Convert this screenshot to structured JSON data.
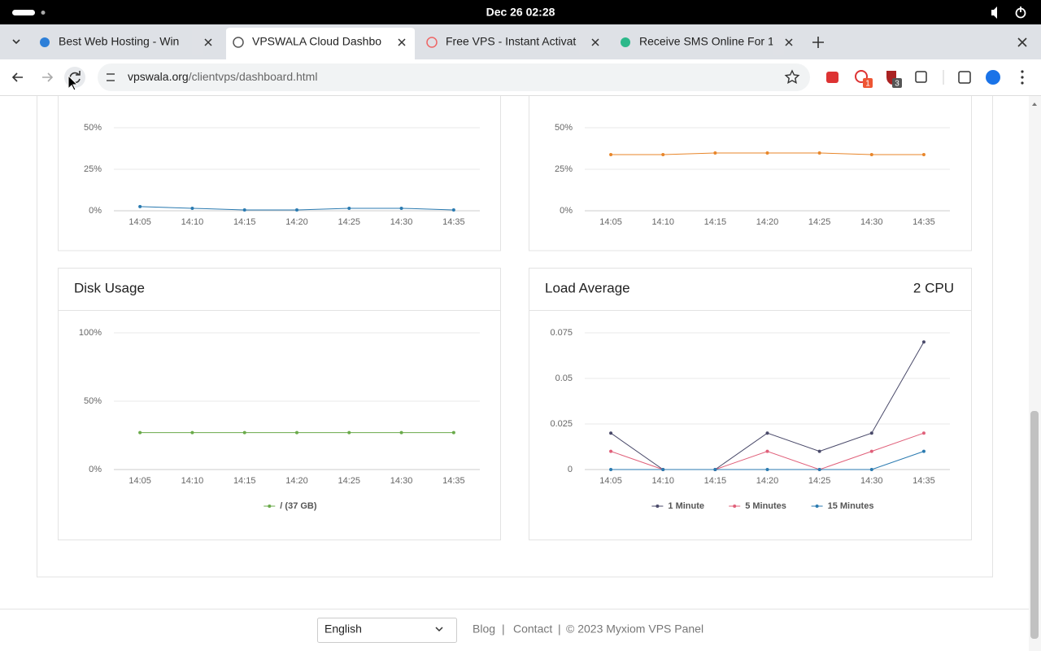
{
  "system_bar": {
    "datetime": "Dec 26  02:28"
  },
  "tabs": [
    {
      "title": "Best Web Hosting - Win"
    },
    {
      "title": "VPSWALA Cloud Dashbo"
    },
    {
      "title": "Free VPS - Instant Activat"
    },
    {
      "title": "Receive SMS Online For 1"
    }
  ],
  "address_bar": {
    "domain": "vpswala.org",
    "path": "/clientvps/dashboard.html"
  },
  "extension_badges": [
    "1",
    "3"
  ],
  "chart_data": [
    {
      "type": "line",
      "categories": [
        "14:05",
        "14:10",
        "14:15",
        "14:20",
        "14:25",
        "14:30",
        "14:35"
      ],
      "values": [
        2.5,
        1.5,
        0.5,
        0.5,
        1.5,
        1.5,
        0.5
      ],
      "color": "#2a7ab0",
      "ylim": [
        0,
        100
      ],
      "yticks": [
        {
          "value": 0,
          "label": "0%"
        },
        {
          "value": 25,
          "label": "25%"
        },
        {
          "value": 50,
          "label": "50%"
        }
      ],
      "grid": true
    },
    {
      "type": "line",
      "categories": [
        "14:05",
        "14:10",
        "14:15",
        "14:20",
        "14:25",
        "14:30",
        "14:35"
      ],
      "values": [
        33.8,
        33.8,
        34.8,
        34.8,
        34.8,
        33.8,
        33.8
      ],
      "color": "#e8862a",
      "ylim": [
        0,
        100
      ],
      "yticks": [
        {
          "value": 0,
          "label": "0%"
        },
        {
          "value": 25,
          "label": "25%"
        },
        {
          "value": 50,
          "label": "50%"
        }
      ],
      "grid": true
    },
    {
      "type": "line",
      "title": "Disk Usage",
      "categories": [
        "14:05",
        "14:10",
        "14:15",
        "14:20",
        "14:25",
        "14:30",
        "14:35"
      ],
      "series": [
        {
          "name": "/ (37 GB)",
          "color": "#6aaa4a",
          "values": [
            27,
            27,
            27,
            27,
            27,
            27,
            27
          ]
        }
      ],
      "ylim": [
        0,
        100
      ],
      "yticks": [
        {
          "value": 0,
          "label": "0%"
        },
        {
          "value": 50,
          "label": "50%"
        },
        {
          "value": 100,
          "label": "100%"
        }
      ],
      "grid": true
    },
    {
      "type": "line",
      "title": "Load Average",
      "subtitle": "2 CPU",
      "categories": [
        "14:05",
        "14:10",
        "14:15",
        "14:20",
        "14:25",
        "14:30",
        "14:35"
      ],
      "series": [
        {
          "name": "1 Minute",
          "color": "#4a4a6a",
          "values": [
            0.02,
            0,
            0,
            0.02,
            0.01,
            0.02,
            0.07
          ]
        },
        {
          "name": "5 Minutes",
          "color": "#e0607a",
          "values": [
            0.01,
            0,
            0,
            0.01,
            0,
            0.01,
            0.02
          ]
        },
        {
          "name": "15 Minutes",
          "color": "#2a7ab0",
          "values": [
            0,
            0,
            0,
            0,
            0,
            0,
            0.01
          ]
        }
      ],
      "ylim": [
        0,
        0.075
      ],
      "yticks": [
        0,
        0.025,
        0.05,
        0.075
      ],
      "grid": true
    }
  ],
  "footer": {
    "language": "English",
    "links": [
      "Blog",
      "Contact"
    ],
    "separator": "|",
    "copyright": "© 2023  Myxiom VPS Panel"
  }
}
